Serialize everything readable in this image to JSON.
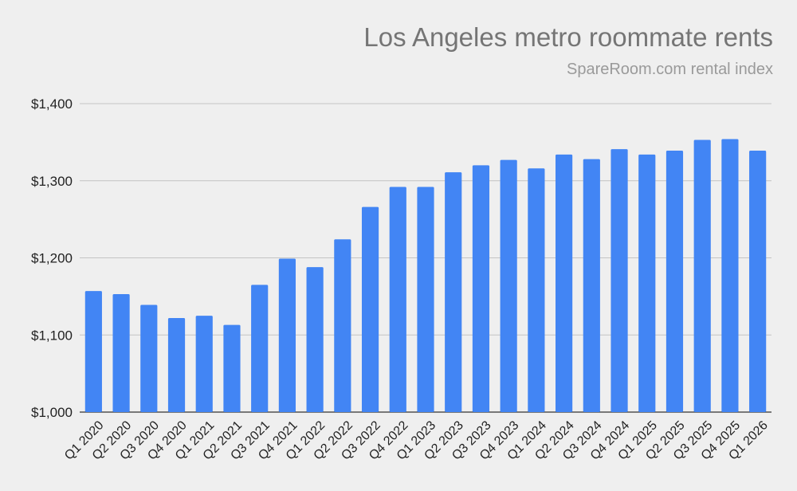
{
  "chart_data": {
    "type": "bar",
    "title": "Los Angeles metro roommate rents",
    "subtitle": "SpareRoom.com rental index",
    "xlabel": "",
    "ylabel": "",
    "ylim": [
      1000,
      1400
    ],
    "yticks": [
      1000,
      1100,
      1200,
      1300,
      1400
    ],
    "ytick_labels": [
      "$1,000",
      "$1,100",
      "$1,200",
      "$1,300",
      "$1,400"
    ],
    "grid": true,
    "bar_color": "#4285f4",
    "categories": [
      "Q1 2020",
      "Q2 2020",
      "Q3 2020",
      "Q4 2020",
      "Q1 2021",
      "Q2 2021",
      "Q3 2021",
      "Q4 2021",
      "Q1 2022",
      "Q2 2022",
      "Q3 2022",
      "Q4 2022",
      "Q1 2023",
      "Q2 2023",
      "Q3 2023",
      "Q4 2023",
      "Q1 2024",
      "Q2 2024",
      "Q3 2024",
      "Q4 2024",
      "Q1 2025",
      "Q2 2025",
      "Q3 2025",
      "Q4 2025",
      "Q1 2026"
    ],
    "values": [
      1157,
      1153,
      1139,
      1122,
      1125,
      1113,
      1165,
      1199,
      1188,
      1224,
      1266,
      1292,
      1292,
      1311,
      1320,
      1327,
      1316,
      1334,
      1328,
      1341,
      1334,
      1339,
      1353,
      1354,
      1339
    ]
  }
}
